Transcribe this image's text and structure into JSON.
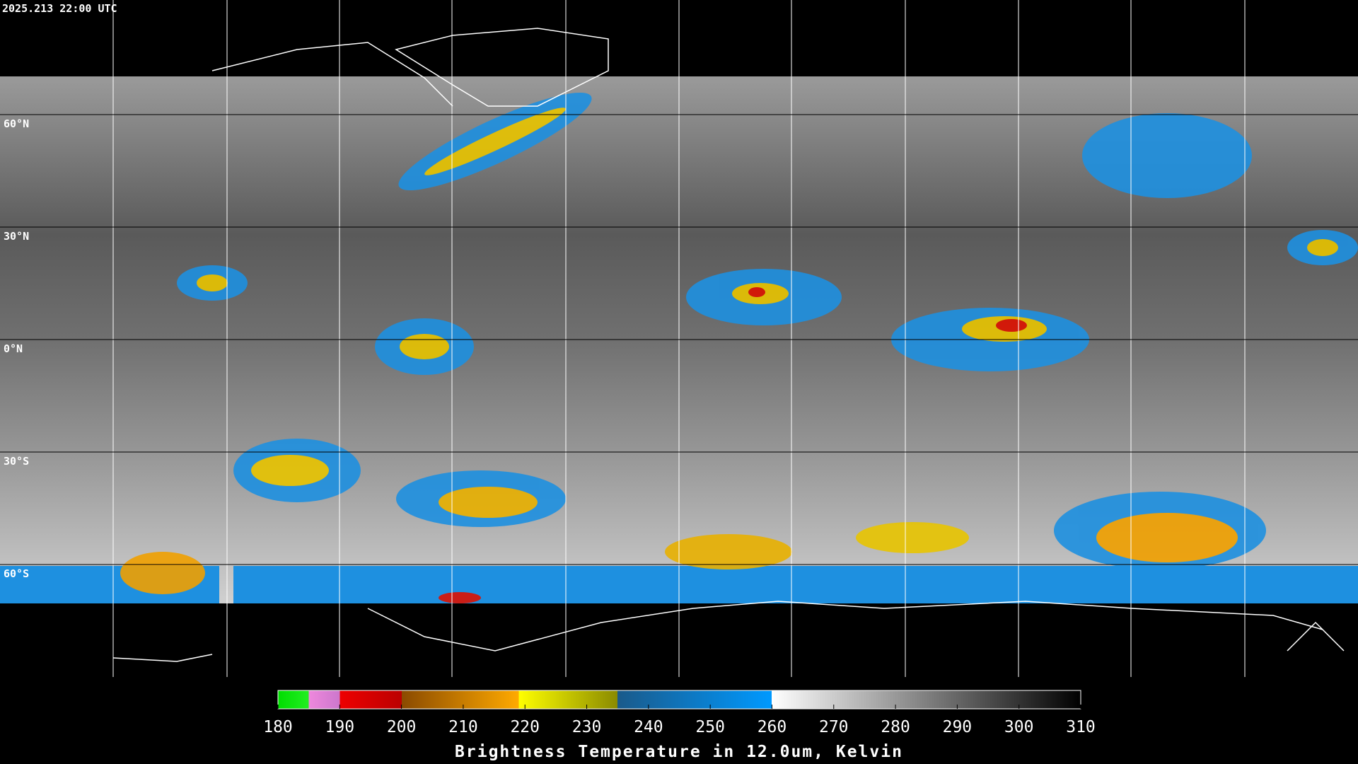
{
  "header": {
    "timestamp": "2025.213 22:00 UTC"
  },
  "map": {
    "lat_labels": [
      "60°N",
      "30°N",
      "0°N",
      "30°S",
      "60°S"
    ]
  },
  "colorbar": {
    "title": "Brightness Temperature in 12.0um, Kelvin",
    "range": [
      180,
      310
    ],
    "ticks": [
      180,
      190,
      200,
      210,
      220,
      230,
      240,
      250,
      260,
      270,
      280,
      290,
      300,
      310
    ]
  }
}
